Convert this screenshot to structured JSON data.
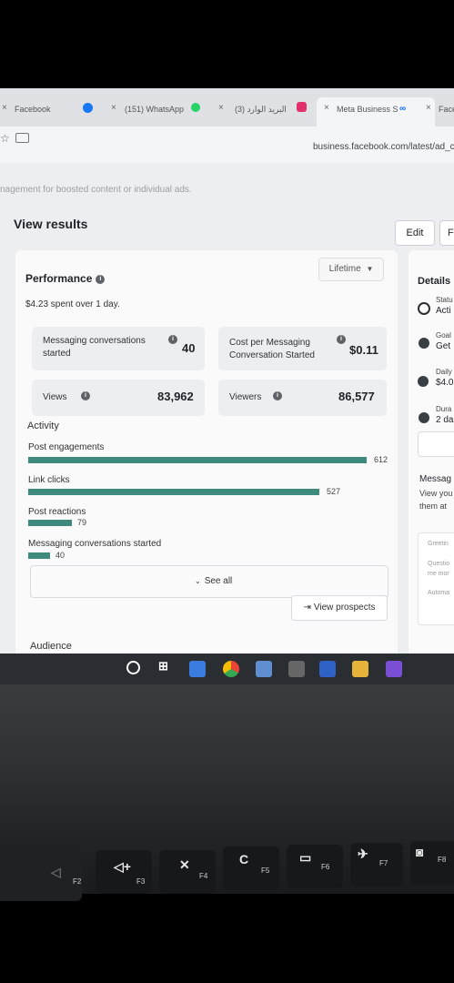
{
  "browser": {
    "tabs": [
      {
        "label": "Facebook"
      },
      {
        "label": "(151) WhatsApp"
      },
      {
        "label": "البريد الوارد (3)"
      },
      {
        "label": "Meta Business S"
      },
      {
        "label": "Face"
      }
    ],
    "close_glyph": "×",
    "url": "business.facebook.com/latest/ad_ce"
  },
  "page": {
    "faded_text": "nagement for boosted content or individual ads.",
    "title": "View results",
    "edit_label": "Edit",
    "more_label": "F"
  },
  "performance": {
    "title": "Performance",
    "range": "Lifetime",
    "spent": "$4.23 spent over 1 day.",
    "metrics": [
      {
        "label": "Messaging conversations started",
        "value": "40"
      },
      {
        "label": "Cost per Messaging Conversation Started",
        "value": "$0.11"
      },
      {
        "label": "Views",
        "value": "83,962"
      },
      {
        "label": "Viewers",
        "value": "86,577"
      }
    ]
  },
  "activity": {
    "title": "Activity",
    "max": 612,
    "items": [
      {
        "label": "Post engagements",
        "value": 612
      },
      {
        "label": "Link clicks",
        "value": 527
      },
      {
        "label": "Post reactions",
        "value": 79
      },
      {
        "label": "Messaging conversations started",
        "value": 40
      }
    ],
    "bar_color": "#3e8a7c",
    "see_all": "See all",
    "view_prospects": "View prospects"
  },
  "audience_label": "Audience",
  "details": {
    "title": "Details",
    "status_label": "Statu",
    "status_value": "Acti",
    "goal_label": "Goal",
    "goal_value": "Get",
    "daily_label": "Daily",
    "daily_value": "$4.0",
    "duration_label": "Dura",
    "duration_value": "2 da",
    "messag_title": "Messag",
    "messag_line1": "View you",
    "messag_line2": "them at",
    "greeting": "Greetin",
    "questions1": "Questio",
    "questions2": "me mor",
    "automa": "Automa"
  },
  "keyboard": {
    "keys": [
      "F2",
      "F3",
      "F4",
      "F5",
      "F6",
      "F7",
      "F8"
    ]
  }
}
